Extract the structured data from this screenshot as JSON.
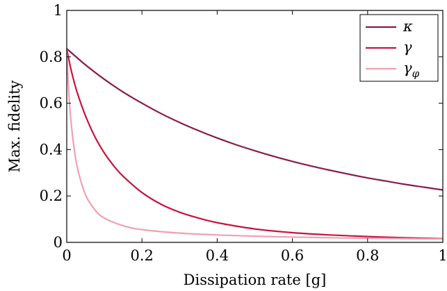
{
  "chart_data": {
    "type": "line",
    "xlabel": "Dissipation rate [g]",
    "ylabel": "Max. fidelity",
    "xlim": [
      0,
      1
    ],
    "ylim": [
      0,
      1
    ],
    "xticks": [
      0,
      0.2,
      0.4,
      0.6,
      0.8,
      1
    ],
    "xtick_labels": [
      "0",
      "0.2",
      "0.4",
      "0.6",
      "0.8",
      "1"
    ],
    "yticks": [
      0,
      0.2,
      0.4,
      0.6,
      0.8,
      1
    ],
    "ytick_labels": [
      "0",
      "0.2",
      "0.4",
      "0.6",
      "0.8",
      "1"
    ],
    "grid": false,
    "legend_position": "top-right",
    "series": [
      {
        "name": "κ",
        "color": "#8b1a4a",
        "x": [
          0,
          0.05,
          0.1,
          0.15,
          0.2,
          0.25,
          0.3,
          0.35,
          0.4,
          0.45,
          0.5,
          0.55,
          0.6,
          0.65,
          0.7,
          0.75,
          0.8,
          0.85,
          0.9,
          0.95,
          1
        ],
        "values": [
          0.835,
          0.765,
          0.703,
          0.648,
          0.6,
          0.556,
          0.517,
          0.482,
          0.45,
          0.421,
          0.395,
          0.371,
          0.349,
          0.329,
          0.311,
          0.294,
          0.278,
          0.264,
          0.25,
          0.238,
          0.226
        ]
      },
      {
        "name": "γ",
        "color": "#c8143c",
        "x": [
          0,
          0.01,
          0.02,
          0.03,
          0.05,
          0.075,
          0.1,
          0.125,
          0.15,
          0.2,
          0.25,
          0.3,
          0.35,
          0.4,
          0.5,
          0.6,
          0.7,
          0.8,
          0.9,
          1
        ],
        "values": [
          0.835,
          0.755,
          0.69,
          0.635,
          0.545,
          0.455,
          0.385,
          0.33,
          0.285,
          0.215,
          0.165,
          0.13,
          0.105,
          0.085,
          0.058,
          0.042,
          0.032,
          0.025,
          0.02,
          0.016
        ]
      },
      {
        "name": "γ_φ",
        "color": "#f0a0b0",
        "x": [
          0,
          0.005,
          0.01,
          0.02,
          0.03,
          0.05,
          0.075,
          0.1,
          0.15,
          0.2,
          0.3,
          0.4,
          0.5,
          0.6,
          0.7,
          0.8,
          0.9,
          1
        ],
        "values": [
          0.835,
          0.66,
          0.545,
          0.4,
          0.31,
          0.205,
          0.14,
          0.105,
          0.072,
          0.055,
          0.04,
          0.032,
          0.027,
          0.023,
          0.02,
          0.018,
          0.016,
          0.015
        ]
      }
    ]
  }
}
